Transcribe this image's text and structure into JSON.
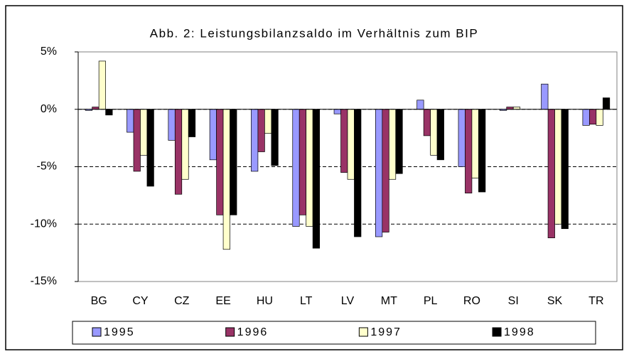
{
  "chart_data": {
    "type": "bar",
    "title": "Abb. 2: Leistungsbilanzsaldo im Verhältnis zum BIP",
    "categories": [
      "BG",
      "CY",
      "CZ",
      "EE",
      "HU",
      "LT",
      "LV",
      "MT",
      "PL",
      "RO",
      "SI",
      "SK",
      "TR"
    ],
    "series": [
      {
        "name": "1995",
        "color": "#9999ff",
        "values": [
          -0.1,
          -2.0,
          -2.7,
          -4.4,
          -5.4,
          -10.2,
          -0.4,
          -11.1,
          0.8,
          -5.0,
          -0.1,
          2.2,
          -1.4
        ]
      },
      {
        "name": "1996",
        "color": "#993366",
        "values": [
          0.2,
          -5.4,
          -7.4,
          -9.2,
          -3.7,
          -9.2,
          -5.5,
          -10.7,
          -2.3,
          -7.3,
          0.2,
          -11.2,
          -1.3
        ]
      },
      {
        "name": "1997",
        "color": "#ffffcc",
        "values": [
          4.2,
          -4.0,
          -6.1,
          -12.2,
          -2.1,
          -10.2,
          -6.1,
          -6.1,
          -4.0,
          -6.0,
          0.2,
          -10.0,
          -1.4
        ]
      },
      {
        "name": "1998",
        "color": "#000000",
        "values": [
          -0.5,
          -6.7,
          -2.4,
          -9.2,
          -4.9,
          -12.1,
          -11.1,
          -5.6,
          -4.4,
          -7.2,
          null,
          -10.4,
          1.0
        ]
      }
    ],
    "ylim": [
      -15,
      5
    ],
    "yticks": [
      {
        "value": -15,
        "label": "-15%"
      },
      {
        "value": -10,
        "label": "-10%"
      },
      {
        "value": -5,
        "label": "-5%"
      },
      {
        "value": 0,
        "label": "0%"
      },
      {
        "value": 5,
        "label": "5%"
      }
    ],
    "grid": true
  }
}
